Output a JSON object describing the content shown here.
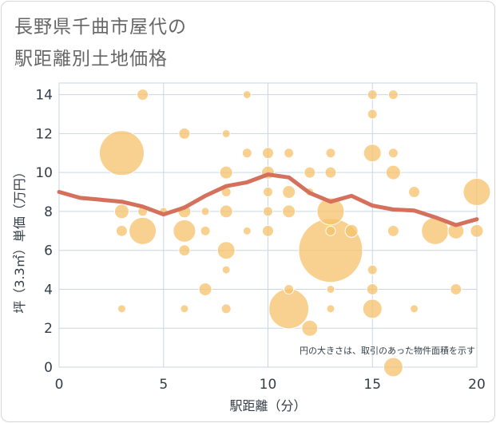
{
  "title_line1": "長野県千曲市屋代の",
  "title_line2": "駅距離別土地価格",
  "note": "円の大きさは、取引のあった物件面積を示す",
  "chart_data": {
    "type": "scatter",
    "xlabel": "駅距離（分）",
    "ylabel": "坪（3.3㎡）単価（万円）",
    "xlim": [
      0,
      20
    ],
    "ylim": [
      0,
      14.6
    ],
    "x_ticks": [
      "0",
      "5",
      "10",
      "15",
      "20"
    ],
    "y_ticks": [
      "0",
      "2",
      "4",
      "6",
      "8",
      "10",
      "12",
      "14"
    ],
    "grid": true,
    "colors": {
      "bubble": "#f5c26b",
      "bubble_edge": "#ffffff",
      "trend": "#d4705c",
      "grid": "#c9d6e2"
    },
    "points": [
      {
        "x": 3,
        "y": 11,
        "s": 28
      },
      {
        "x": 4,
        "y": 14,
        "s": 7
      },
      {
        "x": 3,
        "y": 8,
        "s": 9
      },
      {
        "x": 3,
        "y": 7,
        "s": 7
      },
      {
        "x": 3,
        "y": 3,
        "s": 5
      },
      {
        "x": 4,
        "y": 8,
        "s": 6
      },
      {
        "x": 4,
        "y": 7,
        "s": 17
      },
      {
        "x": 5,
        "y": 8,
        "s": 5
      },
      {
        "x": 6,
        "y": 12,
        "s": 7
      },
      {
        "x": 6,
        "y": 8,
        "s": 8
      },
      {
        "x": 6,
        "y": 7,
        "s": 14
      },
      {
        "x": 6,
        "y": 6,
        "s": 7
      },
      {
        "x": 6,
        "y": 3,
        "s": 5
      },
      {
        "x": 7,
        "y": 8,
        "s": 5
      },
      {
        "x": 7,
        "y": 7,
        "s": 6
      },
      {
        "x": 7,
        "y": 4,
        "s": 8
      },
      {
        "x": 8,
        "y": 12,
        "s": 5
      },
      {
        "x": 8,
        "y": 10,
        "s": 8
      },
      {
        "x": 8,
        "y": 9,
        "s": 6
      },
      {
        "x": 8,
        "y": 8,
        "s": 8
      },
      {
        "x": 8,
        "y": 6,
        "s": 11
      },
      {
        "x": 8,
        "y": 5,
        "s": 5
      },
      {
        "x": 8,
        "y": 3,
        "s": 6
      },
      {
        "x": 9,
        "y": 14,
        "s": 5
      },
      {
        "x": 9,
        "y": 11,
        "s": 6
      },
      {
        "x": 9,
        "y": 7,
        "s": 5
      },
      {
        "x": 10,
        "y": 11,
        "s": 7
      },
      {
        "x": 10,
        "y": 10,
        "s": 8
      },
      {
        "x": 10,
        "y": 9,
        "s": 6
      },
      {
        "x": 10,
        "y": 8,
        "s": 6
      },
      {
        "x": 10,
        "y": 7,
        "s": 7
      },
      {
        "x": 11,
        "y": 11,
        "s": 6
      },
      {
        "x": 11,
        "y": 9,
        "s": 8
      },
      {
        "x": 11,
        "y": 8,
        "s": 8
      },
      {
        "x": 11,
        "y": 4,
        "s": 6
      },
      {
        "x": 11,
        "y": 3,
        "s": 25
      },
      {
        "x": 12,
        "y": 10,
        "s": 7
      },
      {
        "x": 12,
        "y": 9,
        "s": 5
      },
      {
        "x": 12,
        "y": 2,
        "s": 10
      },
      {
        "x": 13,
        "y": 11,
        "s": 6
      },
      {
        "x": 13,
        "y": 10,
        "s": 7
      },
      {
        "x": 13,
        "y": 8,
        "s": 17
      },
      {
        "x": 13,
        "y": 7,
        "s": 6
      },
      {
        "x": 13,
        "y": 6,
        "s": 40
      },
      {
        "x": 13,
        "y": 4,
        "s": 5
      },
      {
        "x": 13,
        "y": 3,
        "s": 5
      },
      {
        "x": 14,
        "y": 7,
        "s": 8
      },
      {
        "x": 15,
        "y": 14,
        "s": 6
      },
      {
        "x": 15,
        "y": 13,
        "s": 6
      },
      {
        "x": 15,
        "y": 11,
        "s": 11
      },
      {
        "x": 15,
        "y": 5,
        "s": 6
      },
      {
        "x": 15,
        "y": 4,
        "s": 7
      },
      {
        "x": 15,
        "y": 3,
        "s": 12
      },
      {
        "x": 16,
        "y": 14,
        "s": 6
      },
      {
        "x": 16,
        "y": 11,
        "s": 6
      },
      {
        "x": 16,
        "y": 10,
        "s": 9
      },
      {
        "x": 16,
        "y": 7,
        "s": 7
      },
      {
        "x": 16,
        "y": 0,
        "s": 12
      },
      {
        "x": 17,
        "y": 9,
        "s": 7
      },
      {
        "x": 17,
        "y": 3,
        "s": 5
      },
      {
        "x": 18,
        "y": 7,
        "s": 17
      },
      {
        "x": 19,
        "y": 7,
        "s": 10
      },
      {
        "x": 19,
        "y": 4,
        "s": 7
      },
      {
        "x": 20,
        "y": 9,
        "s": 17
      },
      {
        "x": 20,
        "y": 7,
        "s": 8
      }
    ],
    "trend": [
      {
        "x": 0,
        "y": 9.0
      },
      {
        "x": 1,
        "y": 8.7
      },
      {
        "x": 2,
        "y": 8.6
      },
      {
        "x": 3,
        "y": 8.5
      },
      {
        "x": 4,
        "y": 8.25
      },
      {
        "x": 5,
        "y": 7.85
      },
      {
        "x": 6,
        "y": 8.2
      },
      {
        "x": 7,
        "y": 8.8
      },
      {
        "x": 8,
        "y": 9.3
      },
      {
        "x": 9,
        "y": 9.5
      },
      {
        "x": 10,
        "y": 9.9
      },
      {
        "x": 11,
        "y": 9.75
      },
      {
        "x": 12,
        "y": 8.95
      },
      {
        "x": 13,
        "y": 8.5
      },
      {
        "x": 14,
        "y": 8.8
      },
      {
        "x": 15,
        "y": 8.3
      },
      {
        "x": 16,
        "y": 8.1
      },
      {
        "x": 17,
        "y": 8.05
      },
      {
        "x": 18,
        "y": 7.7
      },
      {
        "x": 19,
        "y": 7.3
      },
      {
        "x": 20,
        "y": 7.6
      }
    ]
  }
}
